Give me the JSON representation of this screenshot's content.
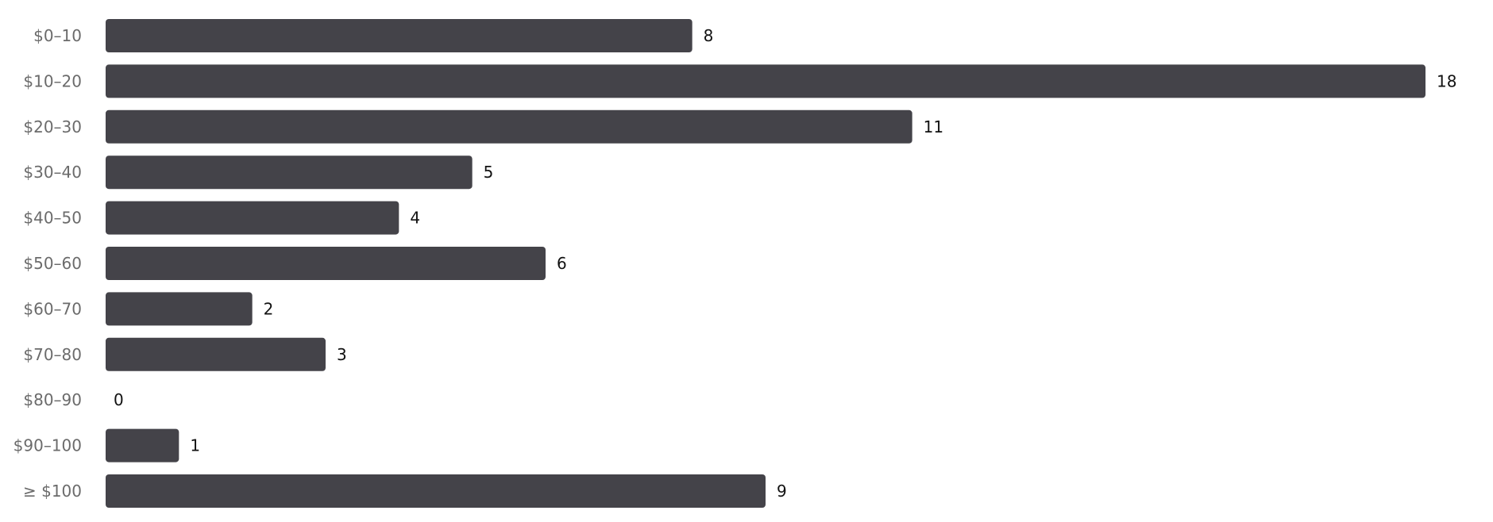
{
  "chart_data": {
    "type": "bar",
    "orientation": "horizontal",
    "categories": [
      "$0–10",
      "$10–20",
      "$20–30",
      "$30–40",
      "$40–50",
      "$50–60",
      "$60–70",
      "$70–80",
      "$80–90",
      "$90–100",
      "≥ $100"
    ],
    "values": [
      8,
      18,
      11,
      5,
      4,
      6,
      2,
      3,
      0,
      1,
      9
    ],
    "value_labels": [
      "8",
      "18",
      "11",
      "5",
      "4",
      "6",
      "2",
      "3",
      "0",
      "1",
      "9"
    ],
    "title": "",
    "xlabel": "",
    "ylabel": "",
    "xlim": [
      0,
      18
    ],
    "grid": false,
    "colors": {
      "bar": "#444349",
      "category_label": "#6b6b6b",
      "value_label": "#111111"
    }
  }
}
